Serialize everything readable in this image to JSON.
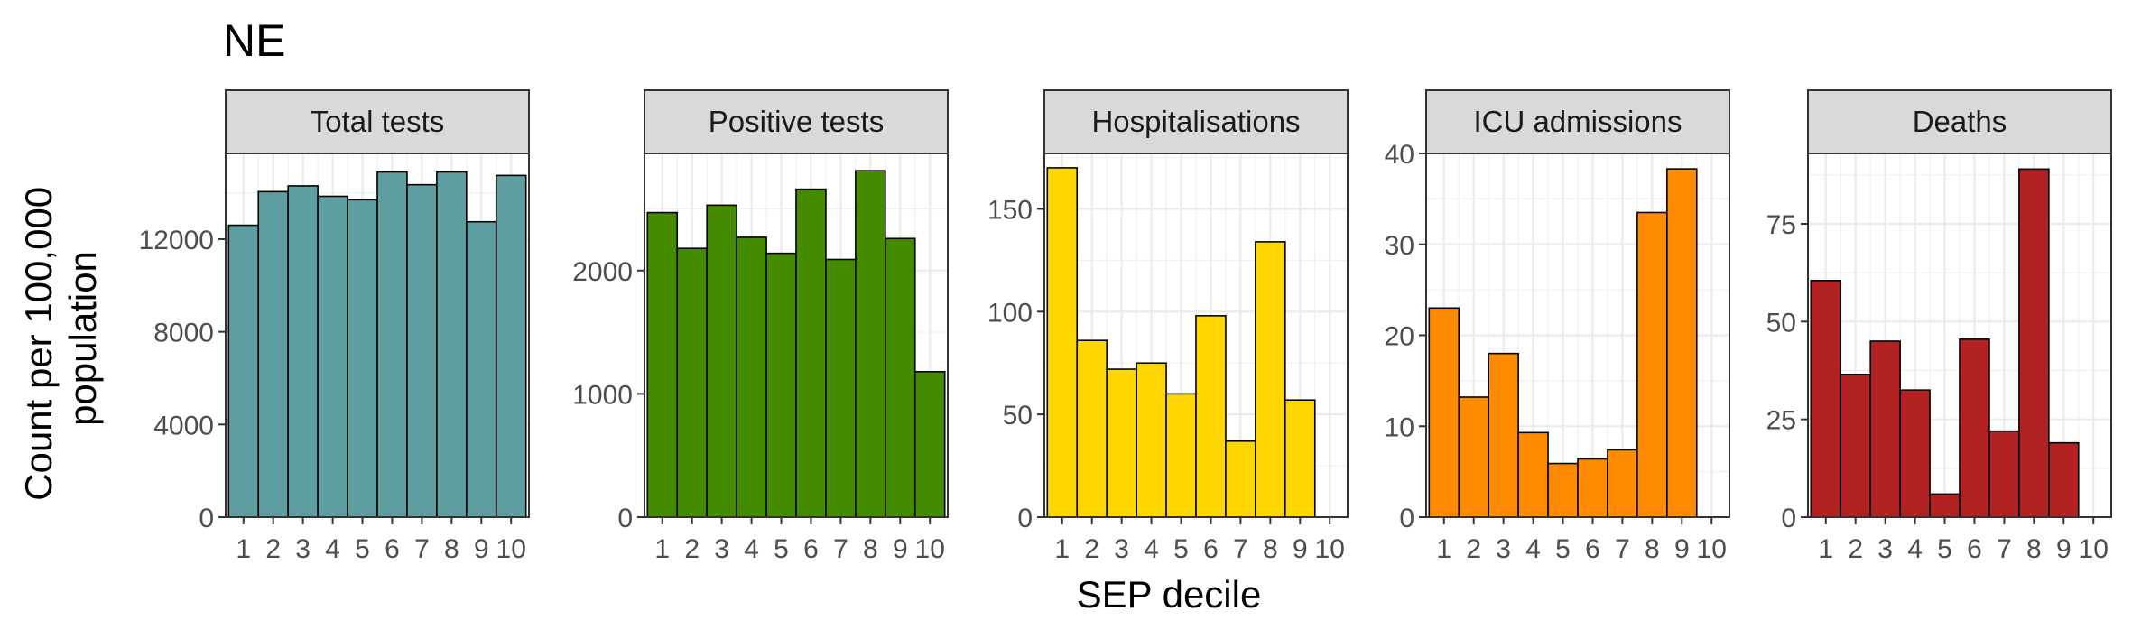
{
  "chart_data": {
    "type": "bar",
    "title": "NE",
    "xlabel": "SEP decile",
    "ylabel": "Count per 100,000 population",
    "ylabel_lines": [
      "Count per 100,000",
      "population"
    ],
    "categories": [
      "1",
      "2",
      "3",
      "4",
      "5",
      "6",
      "7",
      "8",
      "9",
      "10"
    ],
    "grid": true,
    "panels": [
      {
        "name": "Total tests",
        "color": "#5F9EA0",
        "values": [
          12600,
          14050,
          14300,
          13850,
          13700,
          14900,
          14350,
          14900,
          12750,
          14750
        ],
        "ylim": [
          0,
          15700
        ],
        "yticks": [
          0,
          4000,
          8000,
          12000
        ]
      },
      {
        "name": "Positive tests",
        "color": "#458B00",
        "values": [
          2470,
          2180,
          2530,
          2270,
          2140,
          2660,
          2090,
          2810,
          2260,
          1180
        ],
        "ylim": [
          0,
          2950
        ],
        "yticks": [
          0,
          1000,
          2000
        ]
      },
      {
        "name": "Hospitalisations",
        "color": "#FFD700",
        "values": [
          170,
          86,
          72,
          75,
          60,
          98,
          37,
          134,
          57,
          null
        ],
        "ylim": [
          0,
          177
        ],
        "yticks": [
          0,
          50,
          100,
          150
        ]
      },
      {
        "name": "ICU admissions",
        "color": "#FF8C00",
        "values": [
          23,
          13.2,
          18,
          9.3,
          5.9,
          6.4,
          7.4,
          33.5,
          38.3,
          null
        ],
        "ylim": [
          0,
          40
        ],
        "yticks": [
          0,
          10,
          20,
          30,
          40
        ]
      },
      {
        "name": "Deaths",
        "color": "#B22222",
        "values": [
          60.5,
          36.5,
          45,
          32.5,
          5.9,
          45.5,
          22,
          89,
          19,
          null
        ],
        "ylim": [
          0,
          93
        ],
        "yticks": [
          0,
          25,
          50,
          75
        ]
      }
    ]
  }
}
